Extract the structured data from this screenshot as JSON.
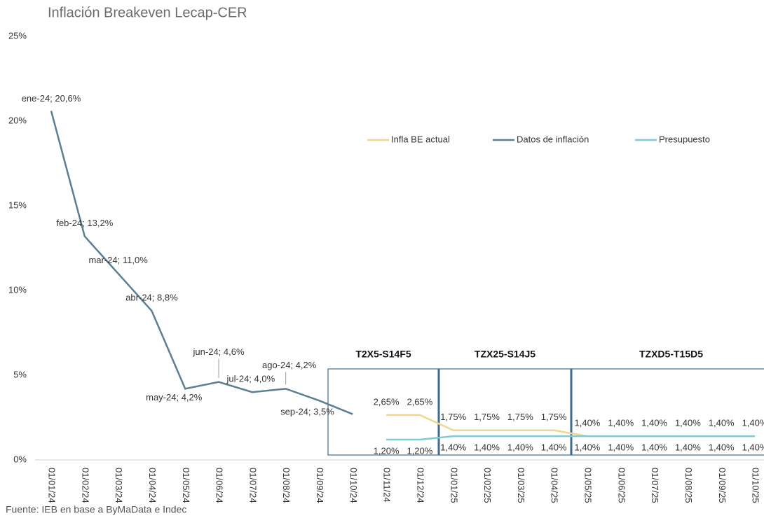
{
  "chart_data": {
    "type": "line",
    "title": "Inflación Breakeven Lecap-CER",
    "note": "Fuente: IEB en base a ByMaData e Indec",
    "annotations": [
      "T2X5-S14F5",
      "TZX25-S14J5",
      "TZXD5-T15D5"
    ],
    "categories": [
      "01/01/24",
      "01/02/24",
      "01/03/24",
      "01/04/24",
      "01/05/24",
      "01/06/24",
      "01/07/24",
      "01/08/24",
      "01/09/24",
      "01/10/24",
      "01/11/24",
      "01/12/24",
      "01/01/25",
      "01/02/25",
      "01/03/25",
      "01/04/25",
      "01/05/25",
      "01/06/25",
      "01/07/25",
      "01/08/25",
      "01/09/25",
      "01/10/25"
    ],
    "series": [
      {
        "name": "Infla BE actual",
        "color": "#f0d68e",
        "values": [
          null,
          null,
          null,
          null,
          null,
          null,
          null,
          null,
          null,
          null,
          2.65,
          2.65,
          1.75,
          1.75,
          1.75,
          1.75,
          1.4,
          1.4,
          1.4,
          1.4,
          1.4,
          1.4
        ],
        "value_labels": [
          null,
          null,
          null,
          null,
          null,
          null,
          null,
          null,
          null,
          null,
          "2,65%",
          "2,65%",
          "1,75%",
          "1,75%",
          "1,75%",
          "1,75%",
          "1,40%",
          "1,40%",
          "1,40%",
          "1,40%",
          "1,40%",
          "1,40%"
        ]
      },
      {
        "name": "Datos de inflación",
        "color": "#5a7f95",
        "values": [
          20.6,
          13.2,
          11.0,
          8.8,
          4.2,
          4.6,
          4.0,
          4.2,
          3.5,
          2.7,
          null,
          null,
          null,
          null,
          null,
          null,
          null,
          null,
          null,
          null,
          null,
          null
        ],
        "value_labels": [
          "ene-24; 20,6%",
          "feb-24; 13,2%",
          "mar-24; 11,0%",
          "abr-24; 8,8%",
          "may-24; 4,2%",
          "jun-24; 4,6%",
          "jul-24; 4,0%",
          "ago-24; 4,2%",
          "sep-24; 3,5%",
          null,
          null,
          null,
          null,
          null,
          null,
          null,
          null,
          null,
          null,
          null,
          null,
          null
        ]
      },
      {
        "name": "Presupuesto",
        "color": "#7fcbd1",
        "values": [
          null,
          null,
          null,
          null,
          null,
          null,
          null,
          null,
          null,
          null,
          1.2,
          1.2,
          1.4,
          1.4,
          1.4,
          1.4,
          1.4,
          1.4,
          1.4,
          1.4,
          1.4,
          1.4
        ],
        "value_labels": [
          null,
          null,
          null,
          null,
          null,
          null,
          null,
          null,
          null,
          null,
          "1,20%",
          "1,20%",
          "1,40%",
          "1,40%",
          "1,40%",
          "1,40%",
          "1,40%",
          "1,40%",
          "1,40%",
          "1,40%",
          "1,40%",
          "1,40%"
        ]
      }
    ],
    "ylim": [
      0,
      25
    ],
    "yticks": [
      {
        "value": 0,
        "label": "0%"
      },
      {
        "value": 5,
        "label": "5%"
      },
      {
        "value": 10,
        "label": "10%"
      },
      {
        "value": 15,
        "label": "15%"
      },
      {
        "value": 20,
        "label": "20%"
      },
      {
        "value": 25,
        "label": "25%"
      }
    ],
    "legend": "top-right"
  }
}
